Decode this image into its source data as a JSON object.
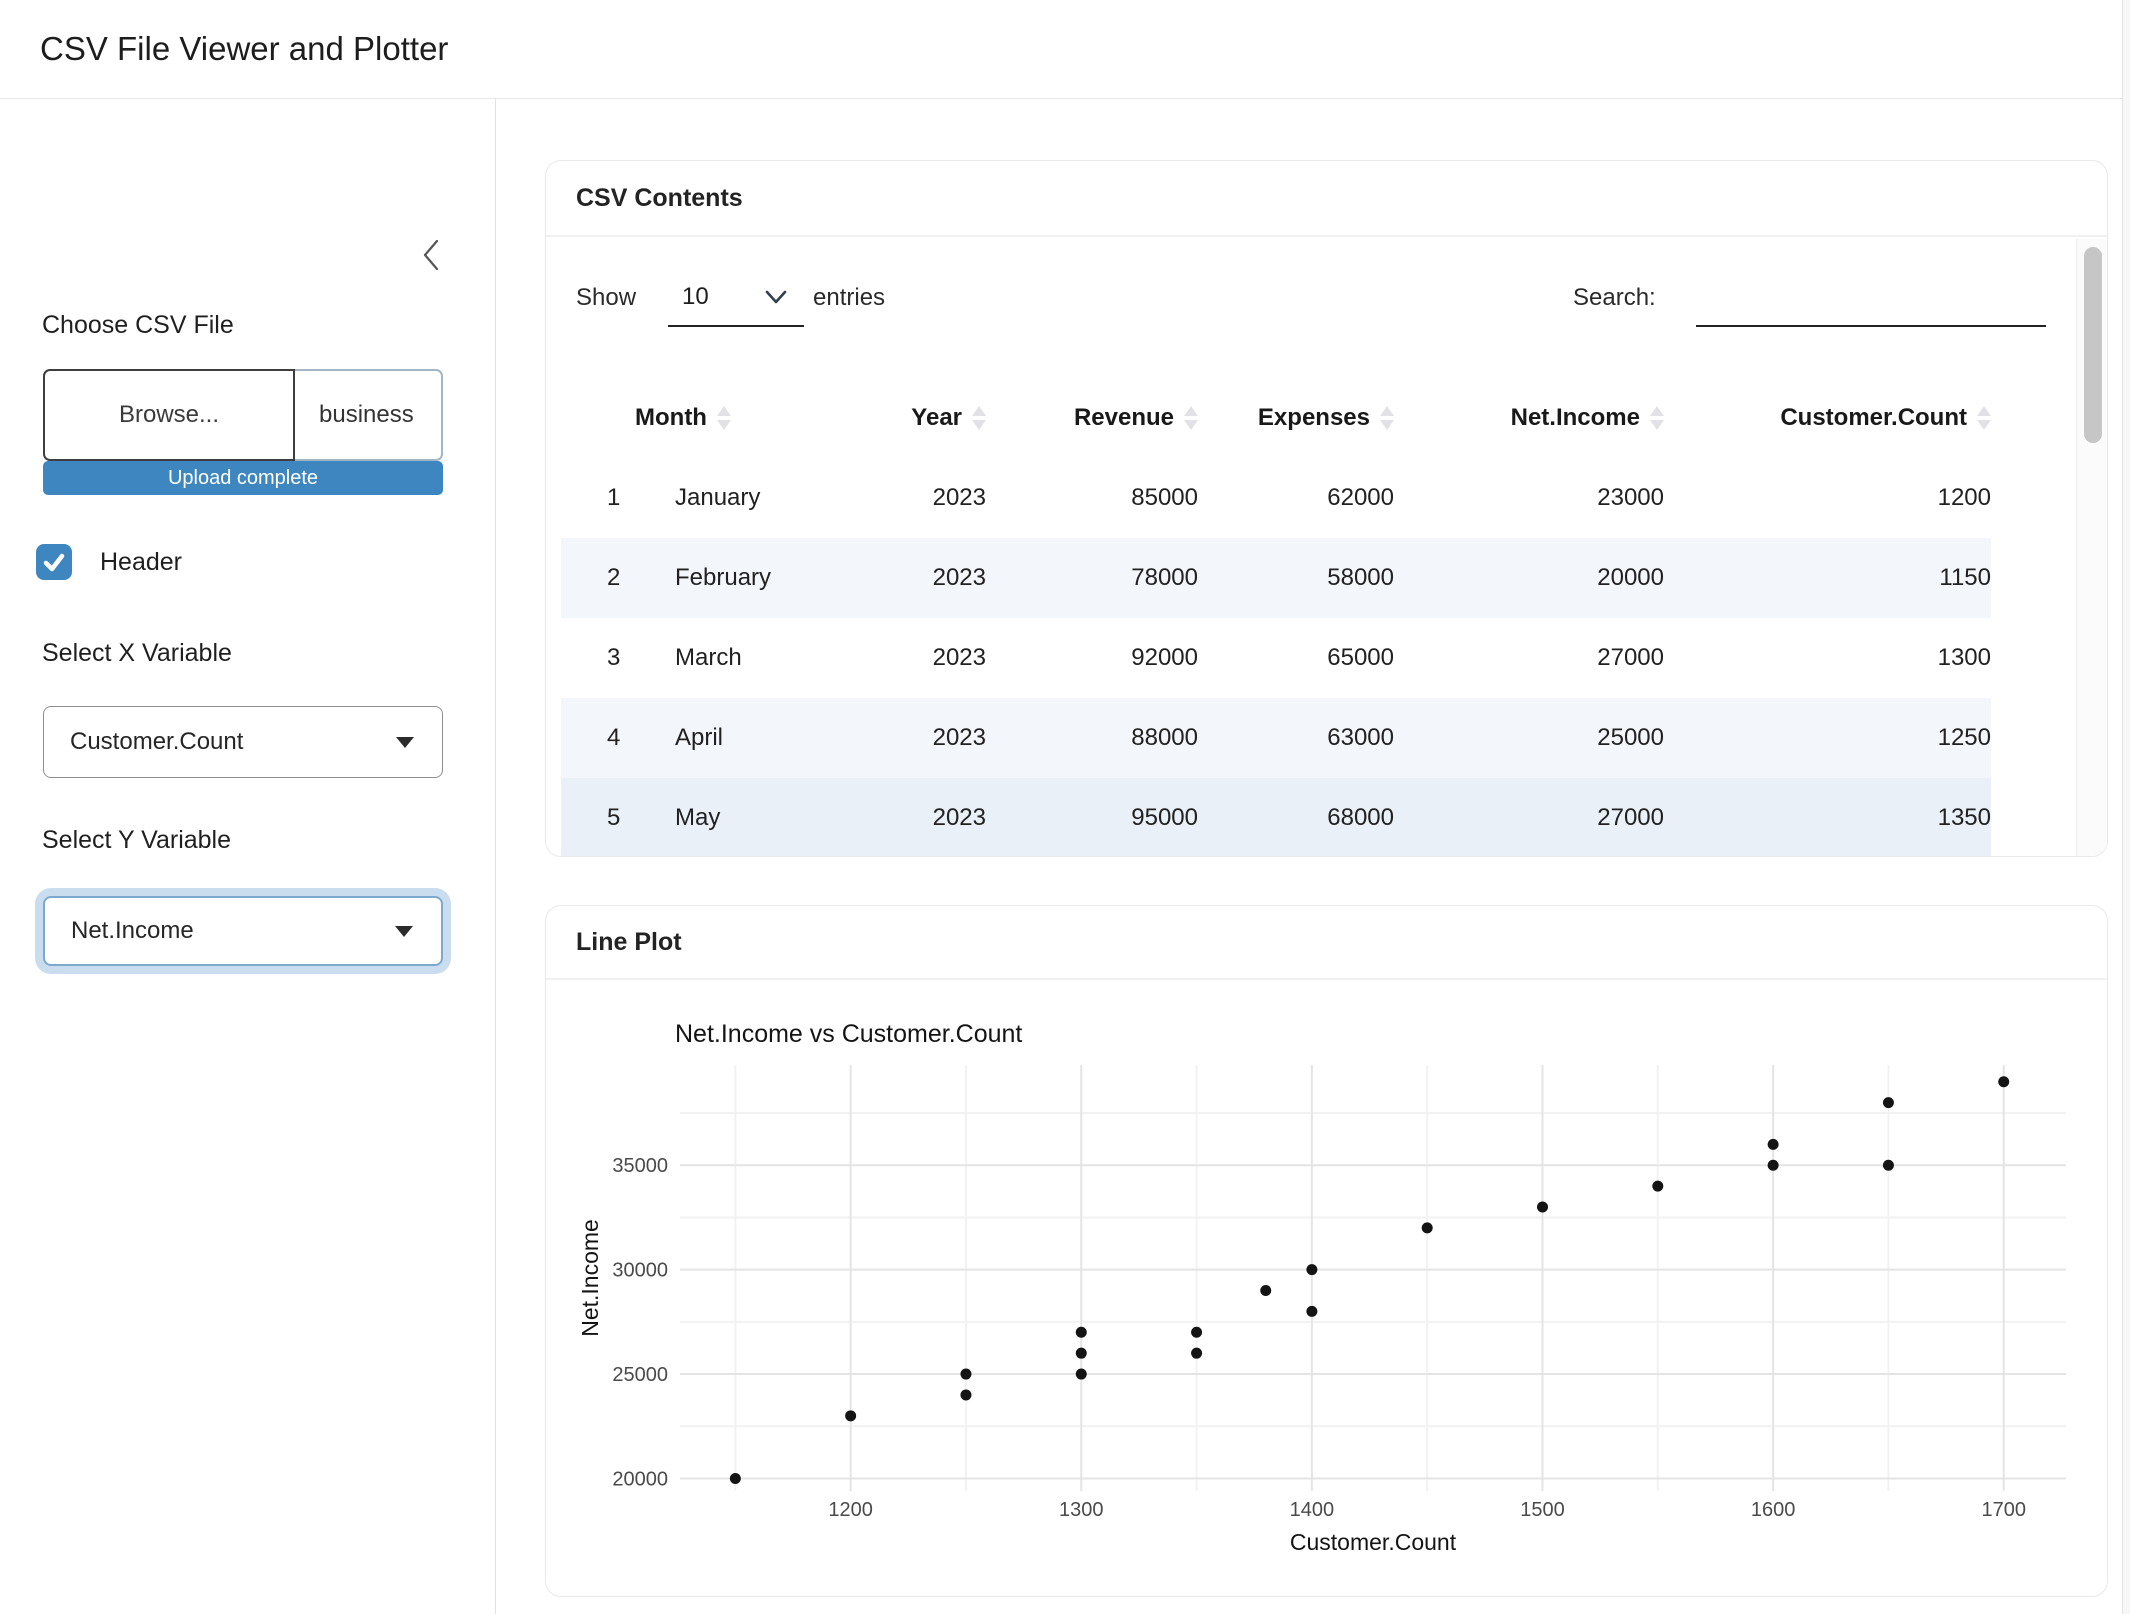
{
  "navbar": {
    "title": "CSV File Viewer and Plotter"
  },
  "theme": {
    "accent": "#3e86c0",
    "stripe_row": "#f3f7fb",
    "hover_row": "#e9f0f7",
    "point_color": "#141414"
  },
  "sidebar": {
    "collapse_icon": "chevron-left",
    "file_label": "Choose CSV File",
    "browse_label": "Browse...",
    "file_name": "business",
    "upload_status": "Upload complete",
    "header_checkbox": {
      "checked": true,
      "label": "Header"
    },
    "x_select": {
      "label": "Select X Variable",
      "value": "Customer.Count"
    },
    "y_select": {
      "label": "Select Y Variable",
      "value": "Net.Income",
      "focused": true
    }
  },
  "csv_card": {
    "title": "CSV Contents",
    "show_label": "Show",
    "page_size": "10",
    "entries_label": "entries",
    "search_label": "Search:",
    "search_value": "",
    "columns": [
      "",
      "Month",
      "Year",
      "Revenue",
      "Expenses",
      "Net.Income",
      "Customer.Count"
    ],
    "rows": [
      [
        "1",
        "January",
        "2023",
        "85000",
        "62000",
        "23000",
        "1200"
      ],
      [
        "2",
        "February",
        "2023",
        "78000",
        "58000",
        "20000",
        "1150"
      ],
      [
        "3",
        "March",
        "2023",
        "92000",
        "65000",
        "27000",
        "1300"
      ],
      [
        "4",
        "April",
        "2023",
        "88000",
        "63000",
        "25000",
        "1250"
      ],
      [
        "5",
        "May",
        "2023",
        "95000",
        "68000",
        "27000",
        "1350"
      ]
    ]
  },
  "plot_card": {
    "title": "Line Plot"
  },
  "chart_data": {
    "type": "scatter",
    "title": "Net.Income vs Customer.Count",
    "xlabel": "Customer.Count",
    "ylabel": "Net.Income",
    "x_ticks": [
      1200,
      1300,
      1400,
      1500,
      1600,
      1700
    ],
    "x_minor_ticks": [
      1150,
      1250,
      1350,
      1450,
      1550,
      1650
    ],
    "y_ticks": [
      20000,
      25000,
      30000,
      35000
    ],
    "y_minor_ticks": [
      22500,
      27500,
      32500,
      37500
    ],
    "xlim": [
      1126,
      1727
    ],
    "ylim": [
      19400,
      39800
    ],
    "grid": "major+minor",
    "legend": "none",
    "points": [
      [
        1150,
        20000
      ],
      [
        1200,
        23000
      ],
      [
        1250,
        24000
      ],
      [
        1250,
        25000
      ],
      [
        1300,
        25000
      ],
      [
        1300,
        26000
      ],
      [
        1300,
        27000
      ],
      [
        1350,
        26000
      ],
      [
        1350,
        27000
      ],
      [
        1380,
        29000
      ],
      [
        1400,
        28000
      ],
      [
        1400,
        30000
      ],
      [
        1450,
        32000
      ],
      [
        1500,
        33000
      ],
      [
        1550,
        34000
      ],
      [
        1600,
        35000
      ],
      [
        1600,
        36000
      ],
      [
        1650,
        35000
      ],
      [
        1650,
        38000
      ],
      [
        1700,
        39000
      ]
    ]
  }
}
